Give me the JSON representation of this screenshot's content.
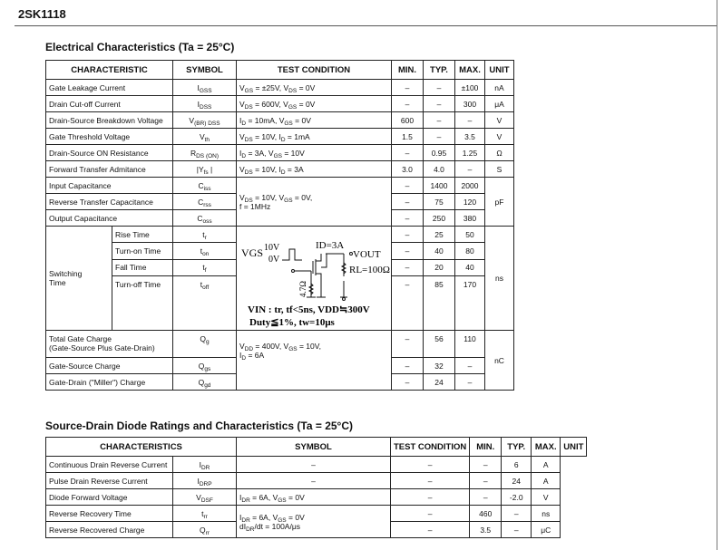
{
  "part_number": "2SK1118",
  "elec": {
    "title": "Electrical Characteristics (Ta = 25°C)",
    "headers": [
      "CHARACTERISTIC",
      "SYMBOL",
      "TEST CONDITION",
      "MIN.",
      "TYP.",
      "MAX.",
      "UNIT"
    ],
    "rows": [
      {
        "name": "Gate Leakage Current",
        "sym": [
          "I",
          {
            "sub": "GSS"
          }
        ],
        "cond": [
          "V",
          {
            "sub": "GS"
          },
          " = ±25V, V",
          {
            "sub": "DS"
          },
          " = 0V"
        ],
        "min": "–",
        "typ": "–",
        "max": "±100",
        "unit": "nA"
      },
      {
        "name": "Drain Cut-off Current",
        "sym": [
          "I",
          {
            "sub": "DSS"
          }
        ],
        "cond": [
          "V",
          {
            "sub": "DS"
          },
          " = 600V, V",
          {
            "sub": "GS"
          },
          " = 0V"
        ],
        "min": "–",
        "typ": "–",
        "max": "300",
        "unit": "μA"
      },
      {
        "name": "Drain-Source Breakdown Voltage",
        "sym": [
          "V",
          {
            "sub": "(BR) DSS"
          }
        ],
        "cond": [
          "I",
          {
            "sub": "D"
          },
          " = 10mA, V",
          {
            "sub": "GS"
          },
          " = 0V"
        ],
        "min": "600",
        "typ": "–",
        "max": "–",
        "unit": "V"
      },
      {
        "name": "Gate Threshold Voltage",
        "sym": [
          "V",
          {
            "sub": "th"
          }
        ],
        "cond": [
          "V",
          {
            "sub": "DS"
          },
          " = 10V, I",
          {
            "sub": "D"
          },
          " = 1mA"
        ],
        "min": "1.5",
        "typ": "–",
        "max": "3.5",
        "unit": "V"
      },
      {
        "name": "Drain-Source ON Resistance",
        "sym": [
          "R",
          {
            "sub": "DS (ON)"
          }
        ],
        "cond": [
          "I",
          {
            "sub": "D"
          },
          " = 3A, V",
          {
            "sub": "GS"
          },
          " = 10V"
        ],
        "min": "–",
        "typ": "0.95",
        "max": "1.25",
        "unit": "Ω"
      },
      {
        "name": "Forward Transfer Admitance",
        "sym": [
          "|Y",
          {
            "sub": "fs"
          },
          " |"
        ],
        "cond": [
          "V",
          {
            "sub": "DS"
          },
          " = 10V, I",
          {
            "sub": "D"
          },
          " = 3A"
        ],
        "min": "3.0",
        "typ": "4.0",
        "max": "–",
        "unit": "S"
      }
    ],
    "cap": {
      "cond": [
        "V",
        {
          "sub": "DS"
        },
        " = 10V, V",
        {
          "sub": "GS"
        },
        " = 0V,\nf = 1MHz"
      ],
      "unit": "pF",
      "rows": [
        {
          "name": "Input Capacitance",
          "sym": [
            "C",
            {
              "sub": "iss"
            }
          ],
          "min": "–",
          "typ": "1400",
          "max": "2000"
        },
        {
          "name": "Reverse Transfer Capacitance",
          "sym": [
            "C",
            {
              "sub": "rss"
            }
          ],
          "min": "–",
          "typ": "75",
          "max": "120"
        },
        {
          "name": "Output Capacitance",
          "sym": [
            "C",
            {
              "sub": "oss"
            }
          ],
          "min": "–",
          "typ": "250",
          "max": "380"
        }
      ]
    },
    "switching": {
      "label": "Switching\nTime",
      "unit": "ns",
      "rows": [
        {
          "name": "Rise Time",
          "sym": [
            "t",
            {
              "sub": "r"
            }
          ],
          "min": "–",
          "typ": "25",
          "max": "50"
        },
        {
          "name": "Turn-on Time",
          "sym": [
            "t",
            {
              "sub": "on"
            }
          ],
          "min": "–",
          "typ": "40",
          "max": "80"
        },
        {
          "name": "Fall Time",
          "sym": [
            "t",
            {
              "sub": "f"
            }
          ],
          "min": "–",
          "typ": "20",
          "max": "40"
        },
        {
          "name": "Turn-off Time",
          "sym": [
            "t",
            {
              "sub": "off"
            }
          ],
          "min": "–",
          "typ": "85",
          "max": "170"
        }
      ],
      "circuit": {
        "vgs": "VGS",
        "v10": "10V",
        "v0": "0V",
        "id": "ID=3A",
        "vout": "VOUT",
        "rl": "RL=100Ω",
        "rg": "4.7Ω",
        "line1": "VIN : tr, tf<5ns,   VDD≒300V",
        "line2": "Duty≦1%, tw=10μs"
      }
    },
    "charge": {
      "cond": [
        "V",
        {
          "sub": "DD"
        },
        " = 400V, V",
        {
          "sub": "GS"
        },
        " = 10V,\nI",
        {
          "sub": "D"
        },
        " = 6A"
      ],
      "unit": "nC",
      "rows": [
        {
          "name": "Total Gate Charge\n(Gate-Source Plus Gate-Drain)",
          "sym": [
            "Q",
            {
              "sub": "g"
            }
          ],
          "min": "–",
          "typ": "56",
          "max": "110"
        },
        {
          "name": "Gate-Source Charge",
          "sym": [
            "Q",
            {
              "sub": "gs"
            }
          ],
          "min": "–",
          "typ": "32",
          "max": "–"
        },
        {
          "name": "Gate-Drain (\"Miller\") Charge",
          "sym": [
            "Q",
            {
              "sub": "gd"
            }
          ],
          "min": "–",
          "typ": "24",
          "max": "–"
        }
      ]
    }
  },
  "diode": {
    "title": "Source-Drain Diode Ratings and Characteristics (Ta = 25°C)",
    "headers": [
      "CHARACTERISTICS",
      "SYMBOL",
      "TEST CONDITION",
      "MIN.",
      "TYP.",
      "MAX.",
      "UNIT"
    ],
    "rows": [
      {
        "name": "Continuous Drain Reverse Current",
        "sym": [
          "I",
          {
            "sub": "DR"
          }
        ],
        "cond": "–",
        "min": "–",
        "typ": "–",
        "max": "6",
        "unit": "A"
      },
      {
        "name": "Pulse Drain Reverse Current",
        "sym": [
          "I",
          {
            "sub": "DRP"
          }
        ],
        "cond": "–",
        "min": "–",
        "typ": "–",
        "max": "24",
        "unit": "A"
      },
      {
        "name": "Diode Forward Voltage",
        "sym": [
          "V",
          {
            "sub": "DSF"
          }
        ],
        "cond": [
          "I",
          {
            "sub": "DR"
          },
          " = 6A, V",
          {
            "sub": "GS"
          },
          " = 0V"
        ],
        "min": "–",
        "typ": "–",
        "max": "-2.0",
        "unit": "V"
      }
    ],
    "rr": {
      "cond": [
        "I",
        {
          "sub": "DR"
        },
        " = 6A, V",
        {
          "sub": "GS"
        },
        " = 0V\ndI",
        {
          "sub": "DR"
        },
        "/dt = 100A/μs"
      ],
      "rows": [
        {
          "name": "Reverse Recovery Time",
          "sym": [
            "t",
            {
              "sub": "rr"
            }
          ],
          "min": "–",
          "typ": "460",
          "max": "–",
          "unit": "ns"
        },
        {
          "name": "Reverse Recovered Charge",
          "sym": [
            "Q",
            {
              "sub": "rr"
            }
          ],
          "min": "–",
          "typ": "3.5",
          "max": "–",
          "unit": "μC"
        }
      ]
    }
  }
}
